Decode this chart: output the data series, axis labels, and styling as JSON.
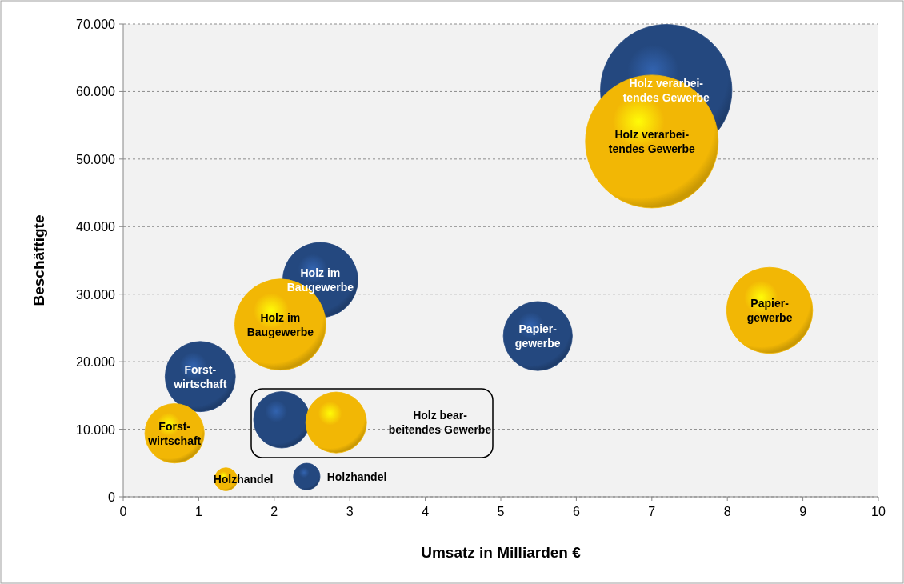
{
  "chart_data": {
    "type": "bubble",
    "xlabel": "Umsatz in Milliarden €",
    "ylabel": "Beschäftigte",
    "xlim": [
      0,
      10
    ],
    "xticks": [
      0,
      1,
      2,
      3,
      4,
      5,
      6,
      7,
      8,
      9,
      10
    ],
    "ylim": [
      0,
      70000
    ],
    "yticks": [
      {
        "value": 0,
        "label": "0"
      },
      {
        "value": 10000,
        "label": "10.000"
      },
      {
        "value": 20000,
        "label": "20.000"
      },
      {
        "value": 30000,
        "label": "30.000"
      },
      {
        "value": 40000,
        "label": "40.000"
      },
      {
        "value": 50000,
        "label": "50.000"
      },
      {
        "value": 60000,
        "label": "60.000"
      },
      {
        "value": 70000,
        "label": "70.000"
      }
    ],
    "grid": "y",
    "series": [
      {
        "color": "#24487f",
        "x": [
          7.19,
          2.61,
          5.49,
          1.02,
          2.1,
          2.43
        ],
        "values": [
          60200,
          32100,
          23800,
          17800,
          11400,
          3000
        ],
        "sizes": [
          0.98,
          0.32,
          0.27,
          0.28,
          0.18,
          0.04
        ]
      },
      {
        "color": "#f2b705",
        "x": [
          7.0,
          2.08,
          8.56,
          0.68,
          2.82,
          1.36
        ],
        "values": [
          52600,
          25500,
          27600,
          9400,
          11000,
          2600
        ],
        "sizes": [
          1,
          0.47,
          0.42,
          0.2,
          0.21,
          0.03
        ]
      }
    ],
    "annotations": [
      {
        "text": "Holz verarbei-\ntendes Gewerbe",
        "x": 7.19,
        "y": 60200
      },
      {
        "text": "Holz im\nBaugewerbe",
        "x": 2.61,
        "y": 32100
      },
      {
        "text": "Papier-\ngewerbe",
        "x": 5.49,
        "y": 23800
      },
      {
        "text": "Forst-\nwirtschaft",
        "x": 1.02,
        "y": 17800
      },
      {
        "text": "Holzhandel",
        "x": 2.43,
        "y": 3000
      },
      {
        "text": "Holz verarbei-\ntendes Gewerbe",
        "x": 7.0,
        "y": 52600
      },
      {
        "text": "Holz im\nBaugewerbe",
        "x": 2.08,
        "y": 25500
      },
      {
        "text": "Papier-\ngewerbe",
        "x": 8.56,
        "y": 27600
      },
      {
        "text": "Forst-\nwirtschaft",
        "x": 0.68,
        "y": 9400
      },
      "Holz bear-\nbeitendes Gewerbe",
      {
        "text": "Holzhandel",
        "x": 1.36,
        "y": 2600
      }
    ]
  }
}
